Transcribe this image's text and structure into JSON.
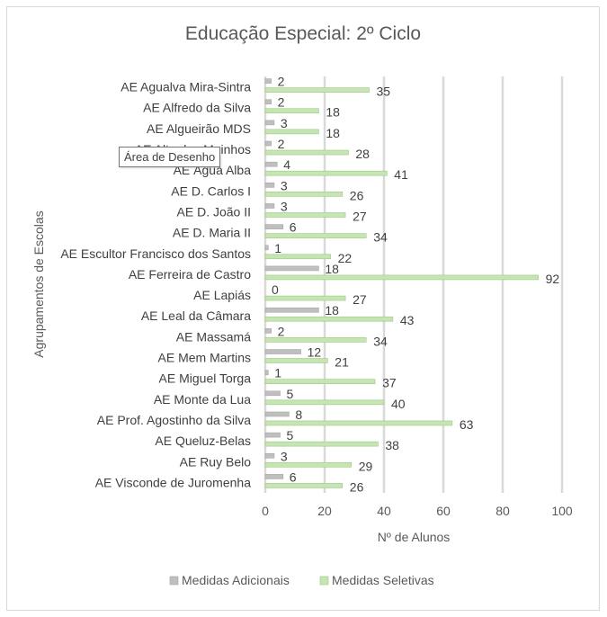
{
  "chart_data": {
    "type": "bar",
    "orientation": "horizontal",
    "title": "Educação Especial: 2º Ciclo",
    "xlabel": "Nº de Alunos",
    "ylabel": "Agrupamentos de Escolas",
    "xlim": [
      0,
      100
    ],
    "xticks": [
      0,
      20,
      40,
      60,
      80,
      100
    ],
    "grid": true,
    "legend_position": "bottom",
    "categories": [
      "AE Agualva Mira-Sintra",
      "AE Alfredo da Silva",
      "AE Algueirão MDS",
      "AE Alto dos Moinhos",
      "AE Água Alba",
      "AE D. Carlos I",
      "AE D. João II",
      "AE D. Maria II",
      "AE Escultor Francisco dos Santos",
      "AE Ferreira de Castro",
      "AE Lapiás",
      "AE Leal da Câmara",
      "AE Massamá",
      "AE Mem Martins",
      "AE Miguel Torga",
      "AE Monte da Lua",
      "AE Prof. Agostinho da Silva",
      "AE Queluz-Belas",
      "AE Ruy Belo",
      "AE Visconde de Juromenha"
    ],
    "series": [
      {
        "name": "Medidas Adicionais",
        "color": "#bfbfbf",
        "values": [
          2,
          2,
          3,
          2,
          4,
          3,
          3,
          6,
          1,
          18,
          0,
          18,
          2,
          12,
          1,
          5,
          8,
          5,
          3,
          6
        ]
      },
      {
        "name": "Medidas Seletivas",
        "color": "#c6e5b3",
        "values": [
          35,
          18,
          18,
          28,
          41,
          26,
          27,
          34,
          22,
          92,
          27,
          43,
          34,
          21,
          37,
          40,
          63,
          38,
          29,
          26
        ]
      }
    ]
  },
  "tooltip": {
    "text": "Área de Desenho"
  },
  "colors": {
    "text": "#595959",
    "grid": "#d9d9d9",
    "label": "#404040"
  }
}
